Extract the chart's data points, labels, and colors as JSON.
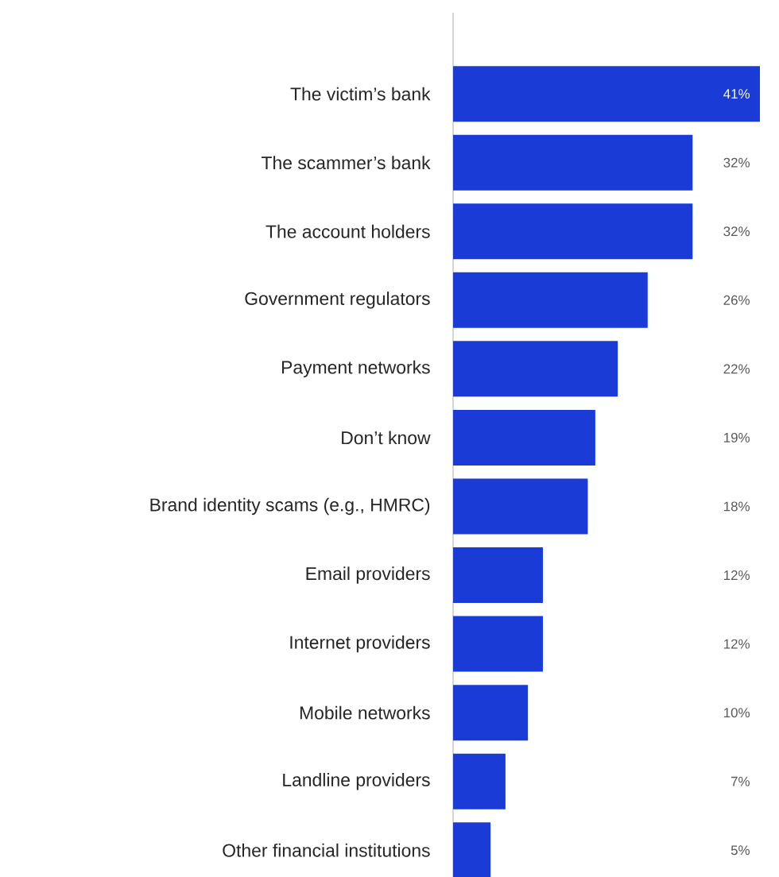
{
  "chart_data": {
    "type": "bar",
    "orientation": "horizontal",
    "categories": [
      "The victim’s bank",
      "The scammer’s bank",
      "The account holders",
      "Government regulators",
      "Payment networks",
      "Don’t know",
      "Brand identity scams (e.g., HMRC)",
      "Email providers",
      "Internet providers",
      "Mobile networks",
      "Landline providers",
      "Other financial institutions"
    ],
    "values": [
      41,
      32,
      32,
      26,
      22,
      19,
      18,
      12,
      12,
      10,
      7,
      5
    ],
    "value_labels": [
      "41%",
      "32%",
      "32%",
      "26%",
      "22%",
      "19%",
      "18%",
      "12%",
      "12%",
      "10%",
      "7%",
      "5%"
    ],
    "color": "#1a3bd6",
    "xlim": [
      0,
      41
    ],
    "tick_labels": "y"
  }
}
